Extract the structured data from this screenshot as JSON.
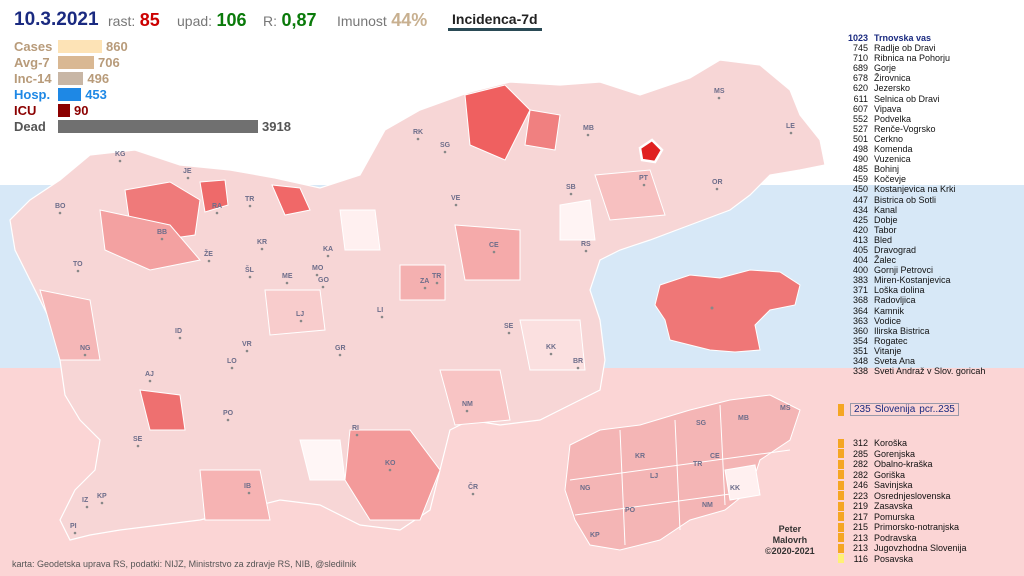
{
  "header": {
    "date": "10.3.2021",
    "rast_label": "rast:",
    "rast_value": "85",
    "upad_label": "upad:",
    "upad_value": "106",
    "r_label": "R:",
    "r_value": "0,87",
    "imunost_label": "Imunost",
    "imunost_value": "44%",
    "incidence_label": "Incidenca-7d"
  },
  "stats": [
    {
      "label": "Cases",
      "value": "860",
      "fraction": 0.22,
      "color": "#fde3b6",
      "text_color": "#b89b7a"
    },
    {
      "label": "Avg-7",
      "value": "706",
      "fraction": 0.18,
      "color": "#d9b893",
      "text_color": "#b89b7a"
    },
    {
      "label": "Inc-14",
      "value": "496",
      "fraction": 0.127,
      "color": "#c8b6a5",
      "text_color": "#b89b7a"
    },
    {
      "label": "Hosp.",
      "value": "453",
      "fraction": 0.116,
      "color": "#1e88e5",
      "text_color": "#1e88e5"
    },
    {
      "label": "ICU",
      "value": "90",
      "fraction": 0.023,
      "color": "#8b0000",
      "text_color": "#8b0000"
    },
    {
      "label": "Dead",
      "value": "3918",
      "fraction": 1.0,
      "color": "#707070",
      "text_color": "#555555"
    }
  ],
  "map_labels": [
    "KG",
    "JE",
    "BO",
    "RA",
    "TR",
    "BB",
    "KR",
    "KA",
    "TO",
    "ŽE",
    "ŠL",
    "ME",
    "MO",
    "GO",
    "LJ",
    "ZA",
    "TR",
    "LI",
    "VR",
    "ID",
    "NG",
    "LO",
    "AJ",
    "GR",
    "SE",
    "PO",
    "NM",
    "RI",
    "SE",
    "IB",
    "KO",
    "ČR",
    "KP",
    "IZ",
    "PI",
    "RK",
    "SG",
    "MB",
    "MS",
    "LE",
    "PT",
    "OR",
    "SB",
    "VE",
    "CE",
    "RS",
    "KK",
    "BR"
  ],
  "inset_labels": [
    "SG",
    "MB",
    "MS",
    "KR",
    "LJ",
    "TR",
    "CE",
    "NG",
    "KK",
    "PO",
    "NM",
    "KP"
  ],
  "ranking": [
    {
      "value": "1023",
      "name": "Trnovska vas",
      "highlight": true
    },
    {
      "value": "745",
      "name": "Radlje ob Dravi"
    },
    {
      "value": "710",
      "name": "Ribnica na Pohorju"
    },
    {
      "value": "689",
      "name": "Gorje"
    },
    {
      "value": "678",
      "name": "Žirovnica"
    },
    {
      "value": "620",
      "name": "Jezersko"
    },
    {
      "value": "611",
      "name": "Selnica ob Dravi"
    },
    {
      "value": "607",
      "name": "Vipava"
    },
    {
      "value": "552",
      "name": "Podvelka"
    },
    {
      "value": "527",
      "name": "Renče-Vogrsko"
    },
    {
      "value": "501",
      "name": "Cerkno"
    },
    {
      "value": "498",
      "name": "Komenda"
    },
    {
      "value": "490",
      "name": "Vuzenica"
    },
    {
      "value": "485",
      "name": "Bohinj"
    },
    {
      "value": "459",
      "name": "Kočevje"
    },
    {
      "value": "450",
      "name": "Kostanjevica na Krki"
    },
    {
      "value": "447",
      "name": "Bistrica ob Sotli"
    },
    {
      "value": "434",
      "name": "Kanal"
    },
    {
      "value": "425",
      "name": "Dobje"
    },
    {
      "value": "420",
      "name": "Tabor"
    },
    {
      "value": "413",
      "name": "Bled"
    },
    {
      "value": "405",
      "name": "Dravograd"
    },
    {
      "value": "404",
      "name": "Žalec"
    },
    {
      "value": "400",
      "name": "Gornji Petrovci"
    },
    {
      "value": "383",
      "name": "Miren-Kostanjevica"
    },
    {
      "value": "371",
      "name": "Loška dolina"
    },
    {
      "value": "368",
      "name": "Radovljica"
    },
    {
      "value": "364",
      "name": "Kamnik"
    },
    {
      "value": "363",
      "name": "Vodice"
    },
    {
      "value": "360",
      "name": "Ilirska Bistrica"
    },
    {
      "value": "354",
      "name": "Rogatec"
    },
    {
      "value": "351",
      "name": "Vitanje"
    },
    {
      "value": "348",
      "name": "Sveta Ana"
    },
    {
      "value": "338",
      "name": "Sveti Andraž v Slov. goricah"
    }
  ],
  "slovenia": {
    "value": "235",
    "name": "Slovenija",
    "extra": "pcr..235"
  },
  "regions": [
    {
      "value": "312",
      "name": "Koroška"
    },
    {
      "value": "285",
      "name": "Gorenjska"
    },
    {
      "value": "282",
      "name": "Obalno-kraška"
    },
    {
      "value": "282",
      "name": "Goriška"
    },
    {
      "value": "246",
      "name": "Savinjska"
    },
    {
      "value": "223",
      "name": "Osrednjeslovenska"
    },
    {
      "value": "219",
      "name": "Zasavska"
    },
    {
      "value": "217",
      "name": "Pomurska"
    },
    {
      "value": "215",
      "name": "Primorsko-notranjska"
    },
    {
      "value": "213",
      "name": "Podravska"
    },
    {
      "value": "213",
      "name": "Jugovzhodna Slovenija"
    },
    {
      "value": "116",
      "name": "Posavska",
      "swatch": "#fff176"
    }
  ],
  "colors": {
    "accent": "#1a2a80",
    "green": "#0a7a0a",
    "red": "#cc0000",
    "imunost": "#c8b090",
    "region_swatch": "#f5a623"
  },
  "credit": {
    "line1": "Peter",
    "line2": "Malovrh",
    "line3": "©2020-2021"
  },
  "footer": "karta: Geodetska uprava RS,  podatki: NIJZ, Ministrstvo za zdravje RS, NIB, @sledilnik"
}
